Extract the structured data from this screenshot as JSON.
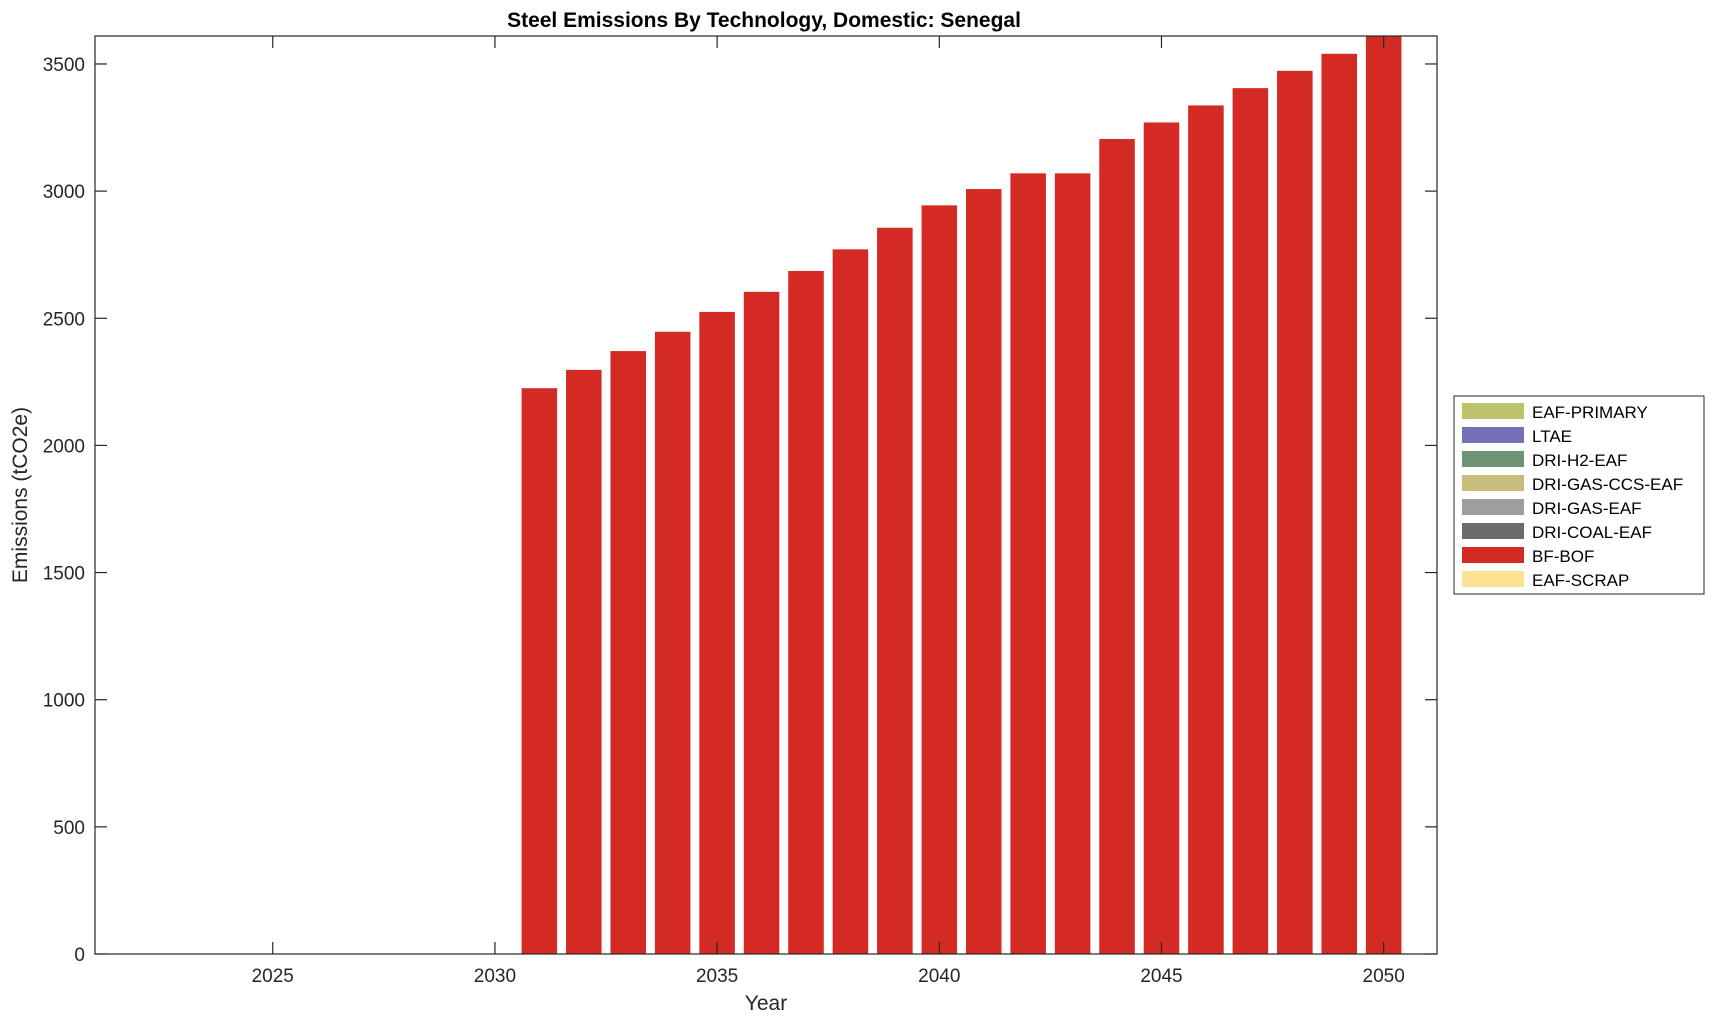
{
  "chart_data": {
    "type": "bar",
    "stacked": true,
    "title": "Steel Emissions By Technology, Domestic: Senegal",
    "xlabel": "Year",
    "ylabel": "Emissions (tCO2e)",
    "xlim": [
      2021,
      2051.2
    ],
    "ylim": [
      0,
      3610
    ],
    "xticks": [
      2025,
      2030,
      2035,
      2040,
      2045,
      2050
    ],
    "yticks": [
      0,
      500,
      1000,
      1500,
      2000,
      2500,
      3000,
      3500
    ],
    "grid": false,
    "legend_position": "right",
    "categories": [
      2031,
      2032,
      2033,
      2034,
      2035,
      2036,
      2037,
      2038,
      2039,
      2040,
      2041,
      2042,
      2043,
      2044,
      2045,
      2046,
      2047,
      2048,
      2049,
      2050
    ],
    "series": [
      {
        "name": "EAF-PRIMARY",
        "color": "#bdc36b",
        "values": [
          0,
          0,
          0,
          0,
          0,
          0,
          0,
          0,
          0,
          0,
          0,
          0,
          0,
          0,
          0,
          0,
          0,
          0,
          0,
          0
        ]
      },
      {
        "name": "LTAE",
        "color": "#7570b8",
        "values": [
          0,
          0,
          0,
          0,
          0,
          0,
          0,
          0,
          0,
          0,
          0,
          0,
          0,
          0,
          0,
          0,
          0,
          0,
          0,
          0
        ]
      },
      {
        "name": "DRI-H2-EAF",
        "color": "#6f9475",
        "values": [
          0,
          0,
          0,
          0,
          0,
          0,
          0,
          0,
          0,
          0,
          0,
          0,
          0,
          0,
          0,
          0,
          0,
          0,
          0,
          0
        ]
      },
      {
        "name": "DRI-GAS-CCS-EAF",
        "color": "#c8bd7c",
        "values": [
          0,
          0,
          0,
          0,
          0,
          0,
          0,
          0,
          0,
          0,
          0,
          0,
          0,
          0,
          0,
          0,
          0,
          0,
          0,
          0
        ]
      },
      {
        "name": "DRI-GAS-EAF",
        "color": "#9e9e9e",
        "values": [
          0,
          0,
          0,
          0,
          0,
          0,
          0,
          0,
          0,
          0,
          0,
          0,
          0,
          0,
          0,
          0,
          0,
          0,
          0,
          0
        ]
      },
      {
        "name": "DRI-COAL-EAF",
        "color": "#6b6b6b",
        "values": [
          0,
          0,
          0,
          0,
          0,
          0,
          0,
          0,
          0,
          0,
          0,
          0,
          0,
          0,
          0,
          0,
          0,
          0,
          0,
          0
        ]
      },
      {
        "name": "BF-BOF",
        "color": "#d42a24",
        "values": [
          2225,
          2297,
          2371,
          2447,
          2525,
          2604,
          2686,
          2771,
          2856,
          2944,
          3008,
          3070,
          3070,
          3205,
          3270,
          3337,
          3405,
          3473,
          3540,
          3610
        ]
      },
      {
        "name": "EAF-SCRAP",
        "color": "#fde293",
        "values": [
          0,
          0,
          0,
          0,
          0,
          0,
          0,
          0,
          0,
          0,
          0,
          0,
          0,
          0,
          0,
          0,
          0,
          0,
          0,
          0
        ]
      }
    ]
  }
}
